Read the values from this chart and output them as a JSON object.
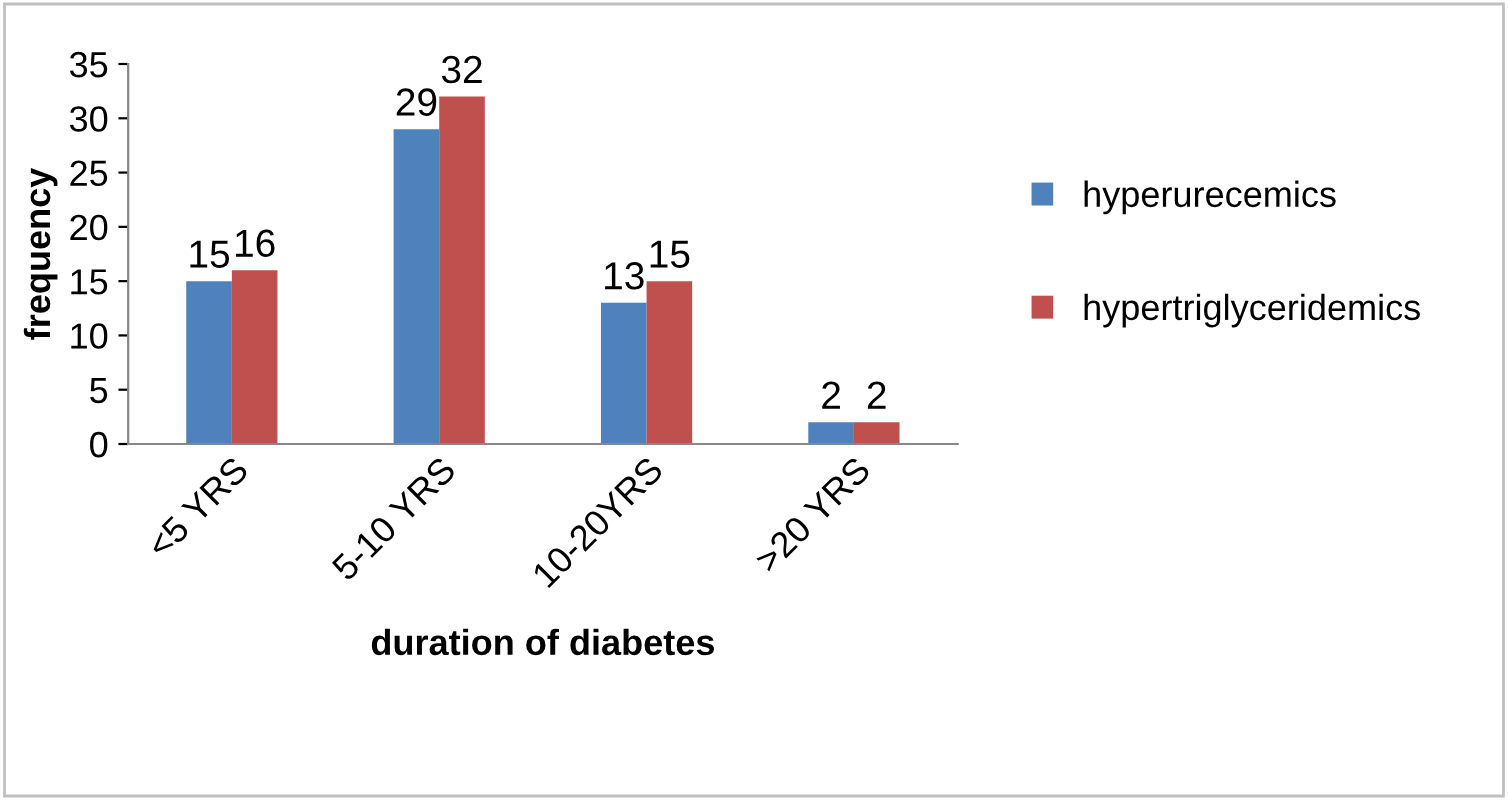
{
  "chart_data": {
    "type": "bar",
    "xlabel": "duration of diabetes",
    "ylabel": "frequency",
    "categories": [
      "<5 YRS",
      "5-10 YRS",
      "10-20YRS",
      ">20 YRS"
    ],
    "series": [
      {
        "name": "hyperurecemics",
        "color": "#4f81bd",
        "values": [
          15,
          29,
          13,
          2
        ]
      },
      {
        "name": "hypertriglyceridemics",
        "color": "#c0504d",
        "values": [
          16,
          32,
          15,
          2
        ]
      }
    ],
    "ylim": [
      0,
      35
    ],
    "yticks": [
      0,
      5,
      10,
      15,
      20,
      25,
      30,
      35
    ],
    "data_labels": true,
    "legend": "right",
    "grid": false
  }
}
